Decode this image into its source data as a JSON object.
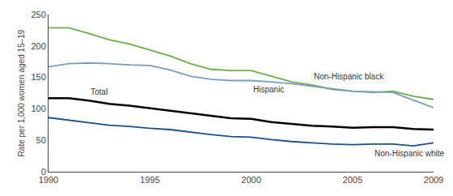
{
  "chart_data": {
    "type": "line",
    "x": [
      1990,
      1991,
      1992,
      1993,
      1994,
      1995,
      1996,
      1997,
      1998,
      1999,
      2000,
      2001,
      2002,
      2003,
      2004,
      2005,
      2006,
      2007,
      2008,
      2009
    ],
    "series": [
      {
        "name": "Non-Hispanic black",
        "color": "#6aaf45",
        "values": [
          229,
          229,
          220,
          210,
          203,
          193,
          184,
          172,
          163,
          161,
          161,
          152,
          143,
          138,
          131,
          128,
          126,
          128,
          120,
          115
        ]
      },
      {
        "name": "Hispanic",
        "color": "#7a9cbf",
        "values": [
          167,
          172,
          173,
          172,
          170,
          169,
          162,
          152,
          147,
          145,
          145,
          143,
          140,
          136,
          132,
          128,
          127,
          126,
          114,
          102
        ]
      },
      {
        "name": "Total",
        "color": "#000000",
        "values": [
          117,
          117,
          113,
          108,
          105,
          101,
          97,
          93,
          89,
          85,
          84,
          79,
          76,
          73,
          72,
          70,
          71,
          71,
          68,
          67
        ]
      },
      {
        "name": "Non-Hispanic white",
        "color": "#1a4f8a",
        "values": [
          86,
          82,
          78,
          74,
          72,
          69,
          67,
          63,
          59,
          56,
          55,
          51,
          48,
          46,
          44,
          43,
          44,
          44,
          41,
          46
        ]
      }
    ],
    "ylabel": "Rate per 1,000 women aged 15–19",
    "xlim": [
      1990,
      2009
    ],
    "xticks": [
      1990,
      1995,
      2000,
      2005,
      2009
    ],
    "ylim": [
      0,
      250
    ],
    "yticks": [
      0,
      50,
      100,
      150,
      200,
      250
    ],
    "grid": false
  }
}
